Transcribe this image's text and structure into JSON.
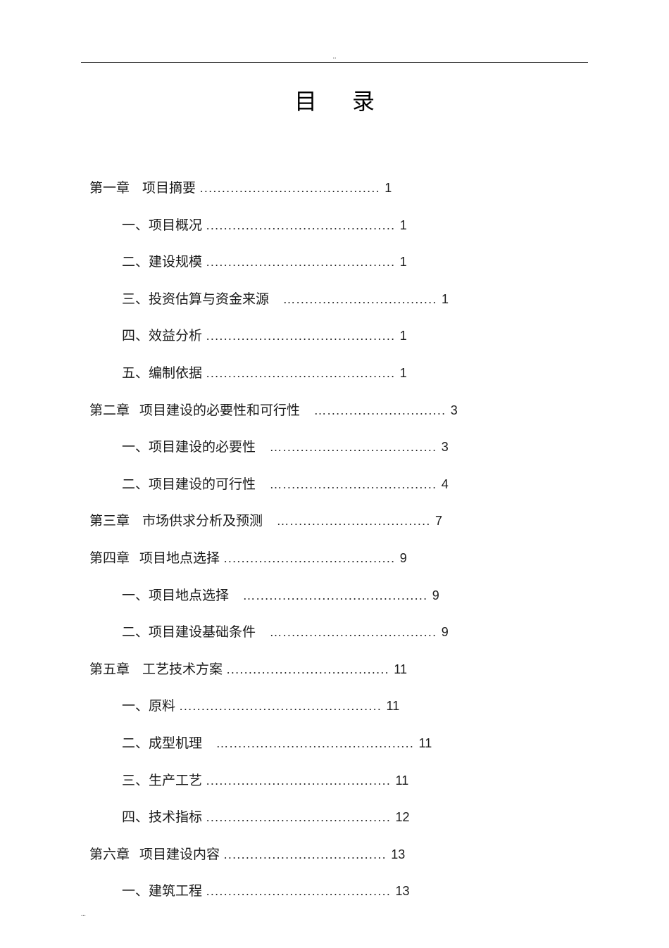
{
  "top_marker": "..",
  "bottom_marker": "...",
  "title": "目录",
  "toc": [
    {
      "level": 1,
      "chapter": "第一章",
      "text": "项目摘要",
      "dots": ".........................................",
      "page": "1",
      "gapAfterChapter": "wide"
    },
    {
      "level": 2,
      "chapter": "一、",
      "text": "项目概况",
      "dots": "...........................................",
      "page": "1"
    },
    {
      "level": 2,
      "chapter": "二、",
      "text": "建设规模",
      "dots": "...........................................",
      "page": "1"
    },
    {
      "level": 2,
      "chapter": "三、",
      "text": "投资估算与资金来源",
      "dots": "…................................",
      "page": "1",
      "spaceBeforeDots": true
    },
    {
      "level": 2,
      "chapter": "四、",
      "text": "效益分析",
      "dots": "...........................................",
      "page": "1"
    },
    {
      "level": 2,
      "chapter": "五、",
      "text": "编制依据",
      "dots": "...........................................",
      "page": "1"
    },
    {
      "level": 1,
      "chapter": "第二章",
      "text": "项目建设的必要性和可行性",
      "dots": "…...........................",
      "page": "3",
      "gapAfterChapter": "normal",
      "spaceBeforeDots": true
    },
    {
      "level": 2,
      "chapter": "一、",
      "text": "项目建设的必要性",
      "dots": "…...................................",
      "page": "3",
      "spaceBeforeDots": true
    },
    {
      "level": 2,
      "chapter": "二、",
      "text": "项目建设的可行性",
      "dots": "…...................................",
      "page": "4",
      "spaceBeforeDots": true
    },
    {
      "level": 1,
      "chapter": "第三章",
      "text": "市场供求分析及预测",
      "dots": "…................................",
      "page": "7",
      "gapAfterChapter": "wide",
      "spaceBeforeDots": true
    },
    {
      "level": 1,
      "chapter": "第四章",
      "text": "项目地点选择",
      "dots": ".......................................",
      "page": "9",
      "gapAfterChapter": "normal"
    },
    {
      "level": 2,
      "chapter": "一、",
      "text": "项目地点选择",
      "dots": "….......................................",
      "page": "9",
      "spaceBeforeDots": true
    },
    {
      "level": 2,
      "chapter": "二、",
      "text": "项目建设基础条件",
      "dots": "…...................................",
      "page": "9",
      "spaceBeforeDots": true
    },
    {
      "level": 1,
      "chapter": "第五章",
      "text": "工艺技术方案",
      "dots": ".....................................",
      "page": "11",
      "gapAfterChapter": "wide"
    },
    {
      "level": 2,
      "chapter": "一、",
      "text": "原料",
      "dots": "..............................................",
      "page": "11"
    },
    {
      "level": 2,
      "chapter": "二、",
      "text": "成型机理",
      "dots": "…..........................................",
      "page": "11",
      "spaceBeforeDots": true
    },
    {
      "level": 2,
      "chapter": "三、",
      "text": "生产工艺",
      "dots": "..........................................",
      "page": "11"
    },
    {
      "level": 2,
      "chapter": "四、",
      "text": "技术指标",
      "dots": "..........................................",
      "page": "12"
    },
    {
      "level": 1,
      "chapter": "第六章",
      "text": "项目建设内容",
      "dots": ".....................................",
      "page": "13",
      "gapAfterChapter": "normal"
    },
    {
      "level": 2,
      "chapter": "一、",
      "text": "建筑工程",
      "dots": "..........................................",
      "page": "13"
    }
  ]
}
